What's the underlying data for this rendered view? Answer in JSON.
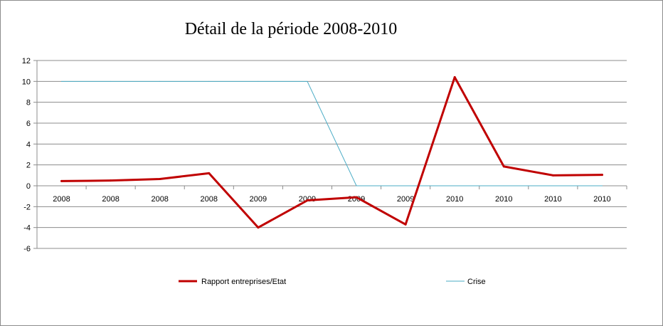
{
  "chart_data": {
    "type": "line",
    "title": "Détail de la période 2008-2010",
    "xlabel": "",
    "ylabel": "",
    "categories": [
      "2008",
      "2008",
      "2008",
      "2008",
      "2009",
      "2009",
      "2009",
      "2009",
      "2010",
      "2010",
      "2010",
      "2010"
    ],
    "ylim": [
      -6,
      12
    ],
    "yticks": [
      -6,
      -4,
      -2,
      0,
      2,
      4,
      6,
      8,
      10,
      12
    ],
    "grid": true,
    "legend_position": "bottom",
    "series": [
      {
        "name": "Rapport entreprises/Etat",
        "color": "#c00000",
        "values": [
          0.45,
          0.5,
          0.65,
          1.2,
          -4.0,
          -1.4,
          -1.1,
          -3.7,
          10.4,
          1.85,
          1.0,
          1.05
        ]
      },
      {
        "name": "Crise",
        "color": "#4bacc6",
        "values": [
          10,
          10,
          10,
          10,
          10,
          10,
          0,
          0,
          0,
          0,
          0,
          0
        ]
      }
    ]
  }
}
